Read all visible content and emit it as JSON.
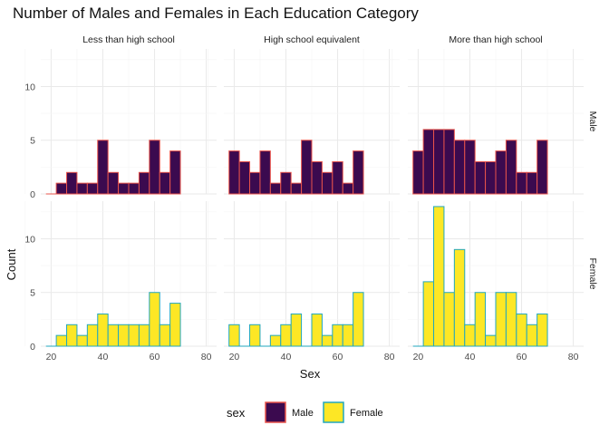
{
  "chart_data": {
    "type": "histogram-facet",
    "title": "Number of Males and Females in Each Education Category",
    "xlabel": "Sex",
    "ylabel": "Count",
    "xlim": [
      16,
      84
    ],
    "ylim": [
      0,
      13.5
    ],
    "x_ticks": [
      20,
      40,
      60,
      80
    ],
    "y_ticks": [
      0,
      5,
      10
    ],
    "bin_width": 4,
    "bin_start": 18,
    "columns": [
      "Less than high school",
      "High school equivalent",
      "More than high school"
    ],
    "rows": [
      "Male",
      "Female"
    ],
    "legend": {
      "title": "sex",
      "position": "bottom",
      "items": [
        {
          "label": "Male",
          "fill": "#3b0a4f",
          "stroke": "#e8534b"
        },
        {
          "label": "Female",
          "fill": "#fde725",
          "stroke": "#21a7bf"
        }
      ]
    },
    "panels": [
      {
        "row": "Male",
        "column": "Less than high school",
        "counts": [
          0,
          1,
          2,
          1,
          1,
          5,
          2,
          1,
          1,
          2,
          5,
          2,
          4
        ]
      },
      {
        "row": "Male",
        "column": "High school equivalent",
        "counts": [
          4,
          3,
          2,
          4,
          1,
          2,
          1,
          5,
          3,
          2,
          3,
          1,
          4
        ]
      },
      {
        "row": "Male",
        "column": "More than high school",
        "counts": [
          4,
          6,
          6,
          6,
          5,
          5,
          3,
          3,
          4,
          5,
          2,
          2,
          5
        ]
      },
      {
        "row": "Female",
        "column": "Less than high school",
        "counts": [
          0,
          1,
          2,
          1,
          2,
          3,
          2,
          2,
          2,
          2,
          5,
          2,
          4
        ]
      },
      {
        "row": "Female",
        "column": "High school equivalent",
        "counts": [
          2,
          0,
          2,
          0,
          1,
          2,
          3,
          0,
          3,
          1,
          2,
          2,
          5
        ]
      },
      {
        "row": "Female",
        "column": "More than high school",
        "counts": [
          0,
          6,
          13,
          5,
          9,
          2,
          5,
          1,
          5,
          5,
          3,
          2,
          3
        ]
      }
    ]
  }
}
